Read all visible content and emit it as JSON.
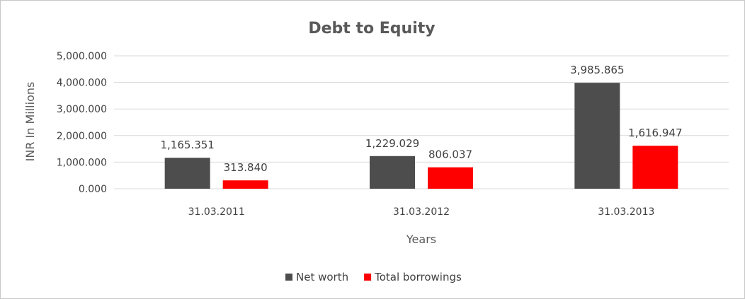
{
  "chart_data": {
    "type": "bar",
    "title": "Debt to Equity",
    "xlabel": "Years",
    "ylabel": "INR In Millions",
    "categories": [
      "31.03.2011",
      "31.03.2012",
      "31.03.2013"
    ],
    "series": [
      {
        "name": "Net worth",
        "color": "#4d4d4d",
        "values": [
          1165.351,
          1229.029,
          3985.865
        ],
        "labels": [
          "1,165.351",
          "1,229.029",
          "3,985.865"
        ]
      },
      {
        "name": "Total borrowings",
        "color": "#ff0000",
        "values": [
          313.84,
          806.037,
          1616.947
        ],
        "labels": [
          "313.840",
          "806.037",
          "1,616.947"
        ]
      }
    ],
    "ylim": [
      0,
      5000
    ],
    "yticks": [
      0,
      1000,
      2000,
      3000,
      4000,
      5000
    ],
    "ytick_labels": [
      "0.000",
      "1,000.000",
      "2,000.000",
      "3,000.000",
      "4,000.000",
      "5,000.000"
    ],
    "grid": true,
    "legend_position": "bottom"
  }
}
